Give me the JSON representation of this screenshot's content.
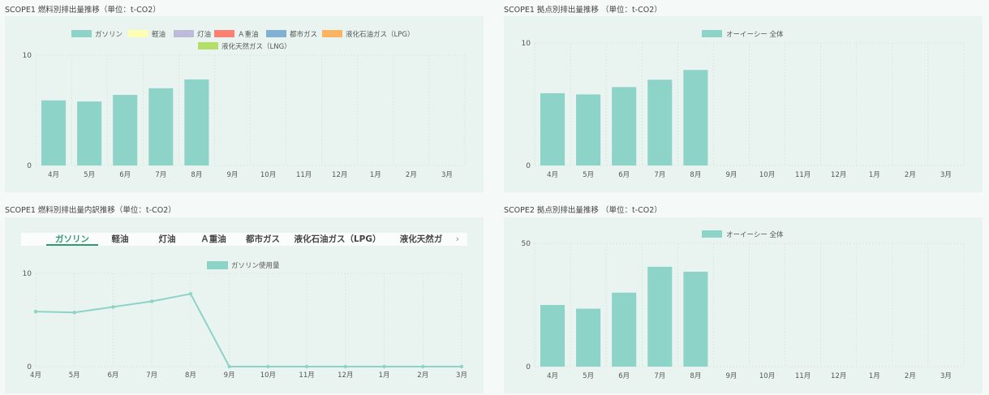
{
  "panels": {
    "p1_title": "SCOPE1 燃料別排出量推移（単位：t-CO2）",
    "p2_title": "SCOPE1 拠点別排出量推移 （単位：t-CO2）",
    "p3_title": "SCOPE1 燃料別排出量内訳推移（単位：t-CO2）",
    "p4_title": "SCOPE2 拠点別排出量推移 （単位：t-CO2）"
  },
  "tabs": [
    "ガソリン",
    "軽油",
    "灯油",
    "Ａ重油",
    "都市ガス",
    "液化石油ガス（LPG）",
    "液化天然ガ"
  ],
  "active_tab": "ガソリン",
  "colors": {
    "teal": "#8dd3c7",
    "gasoline": "#8dd3c7",
    "light_oil": "#ffffb3",
    "kerosene": "#bebada",
    "heavy_oil": "#fb8072",
    "city_gas": "#80b1d3",
    "lpg": "#fdb462",
    "lng": "#b3de69"
  },
  "chart_data": [
    {
      "type": "bar",
      "title": "SCOPE1 燃料別排出量推移（単位：t-CO2）",
      "categories": [
        "4月",
        "5月",
        "6月",
        "7月",
        "8月",
        "9月",
        "10月",
        "11月",
        "12月",
        "1月",
        "2月",
        "3月"
      ],
      "ylim": [
        0,
        10
      ],
      "yticks": [
        0,
        10
      ],
      "grid": true,
      "legend_position": "top",
      "legend": [
        "ガソリン",
        "軽油",
        "灯油",
        "Ａ重油",
        "都市ガス",
        "液化石油ガス（LPG）",
        "液化天然ガス（LNG）"
      ],
      "series": [
        {
          "name": "ガソリン",
          "values": [
            5.9,
            5.8,
            6.4,
            7.0,
            7.8,
            null,
            null,
            null,
            null,
            null,
            null,
            null
          ]
        }
      ]
    },
    {
      "type": "bar",
      "title": "SCOPE1 拠点別排出量推移 （単位：t-CO2）",
      "categories": [
        "4月",
        "5月",
        "6月",
        "7月",
        "8月",
        "9月",
        "10月",
        "11月",
        "12月",
        "1月",
        "2月",
        "3月"
      ],
      "ylim": [
        0,
        10
      ],
      "yticks": [
        0,
        10
      ],
      "grid": true,
      "legend_position": "top",
      "series": [
        {
          "name": "オーイーシー 全体",
          "values": [
            5.9,
            5.8,
            6.4,
            7.0,
            7.8,
            null,
            null,
            null,
            null,
            null,
            null,
            null
          ]
        }
      ]
    },
    {
      "type": "line",
      "title": "SCOPE1 燃料別排出量内訳推移（単位：t-CO2）",
      "categories": [
        "4月",
        "5月",
        "6月",
        "7月",
        "8月",
        "9月",
        "10月",
        "11月",
        "12月",
        "1月",
        "2月",
        "3月"
      ],
      "ylim": [
        0,
        10
      ],
      "yticks": [
        0,
        10
      ],
      "grid": true,
      "legend_position": "top",
      "series": [
        {
          "name": "ガソリン使用量",
          "values": [
            5.9,
            5.8,
            6.4,
            7.0,
            7.8,
            0,
            0,
            0,
            0,
            0,
            0,
            0
          ]
        }
      ]
    },
    {
      "type": "bar",
      "title": "SCOPE2 拠点別排出量推移 （単位：t-CO2）",
      "categories": [
        "4月",
        "5月",
        "6月",
        "7月",
        "8月",
        "9月",
        "10月",
        "11月",
        "12月",
        "1月",
        "2月",
        "3月"
      ],
      "ylim": [
        0,
        50
      ],
      "yticks": [
        0,
        50
      ],
      "grid": true,
      "legend_position": "top",
      "series": [
        {
          "name": "オーイーシー 全体",
          "values": [
            25,
            23.5,
            30,
            40.5,
            38.5,
            null,
            null,
            null,
            null,
            null,
            null,
            null
          ]
        }
      ]
    }
  ]
}
